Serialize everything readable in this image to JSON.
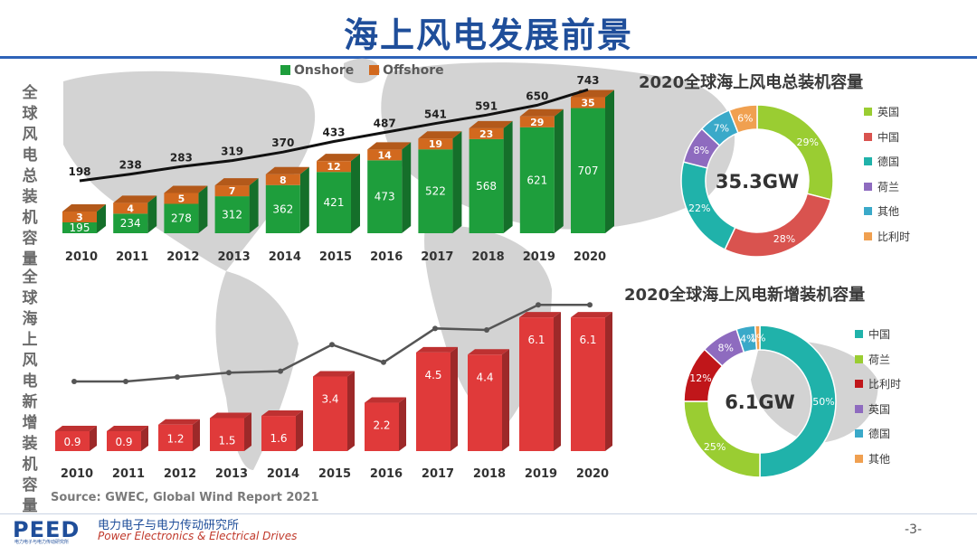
{
  "title": "海上风电发展前景",
  "left_label_top": "全球风电总装机容量",
  "left_label_bottom": "全球海上风电新增装机容量",
  "source": "Source: GWEC, Global Wind Report 2021",
  "footer": {
    "logo": "PEED",
    "logo_sub": "电力电子与电力传动研究所",
    "org_cn": "电力电子与电力传动研究所",
    "org_en": "Power Electronics & Electrical Drives",
    "page": "-3-"
  },
  "colors": {
    "onshore": "#1e9e3c",
    "offshore": "#d2691e",
    "newadd": "#e03a3a",
    "title": "#1f4e9a"
  },
  "chart_data": [
    {
      "type": "bar",
      "stacked": true,
      "categories": [
        "2010",
        "2011",
        "2012",
        "2013",
        "2014",
        "2015",
        "2016",
        "2017",
        "2018",
        "2019",
        "2020"
      ],
      "series": [
        {
          "name": "Onshore",
          "values": [
            195,
            234,
            278,
            312,
            362,
            421,
            473,
            522,
            568,
            621,
            707
          ]
        },
        {
          "name": "Offshore",
          "values": [
            3,
            4,
            5,
            7,
            8,
            12,
            14,
            19,
            23,
            29,
            35
          ]
        }
      ],
      "totals": [
        198,
        238,
        283,
        319,
        370,
        433,
        487,
        541,
        591,
        650,
        743
      ],
      "legend": "top"
    },
    {
      "type": "bar",
      "categories": [
        "2010",
        "2011",
        "2012",
        "2013",
        "2014",
        "2015",
        "2016",
        "2017",
        "2018",
        "2019",
        "2020"
      ],
      "values": [
        0.9,
        0.9,
        1.2,
        1.5,
        1.6,
        3.4,
        2.2,
        4.5,
        4.4,
        6.1,
        6.1
      ],
      "trend_line": [
        0.9,
        0.9,
        1.2,
        1.5,
        1.6,
        3.4,
        2.2,
        4.5,
        4.4,
        6.1,
        6.1
      ]
    },
    {
      "type": "pie",
      "donut": true,
      "title": "2020全球海上风电总装机容量",
      "center_label": "35.3GW",
      "labels": [
        "英国",
        "中国",
        "德国",
        "荷兰",
        "其他",
        "比利时"
      ],
      "values": [
        29,
        28,
        22,
        8,
        7,
        6
      ],
      "value_labels": [
        "29%",
        "28%",
        "22%",
        "8%",
        "7%",
        "6%"
      ],
      "colors": [
        "#9acd32",
        "#d9534f",
        "#20b2aa",
        "#8e6bbf",
        "#3aa9c9",
        "#f0a050"
      ]
    },
    {
      "type": "pie",
      "donut": true,
      "title": "2020全球海上风电新增装机容量",
      "center_label": "6.1GW",
      "labels": [
        "中国",
        "荷兰",
        "比利时",
        "英国",
        "德国",
        "其他"
      ],
      "values": [
        50,
        25,
        12,
        8,
        4,
        1
      ],
      "value_labels": [
        "50%",
        "25%",
        "12%",
        "8%",
        "4%",
        "1%"
      ],
      "colors": [
        "#20b2aa",
        "#9acd32",
        "#c0161a",
        "#8e6bbf",
        "#3aa9c9",
        "#f0a050"
      ]
    }
  ]
}
